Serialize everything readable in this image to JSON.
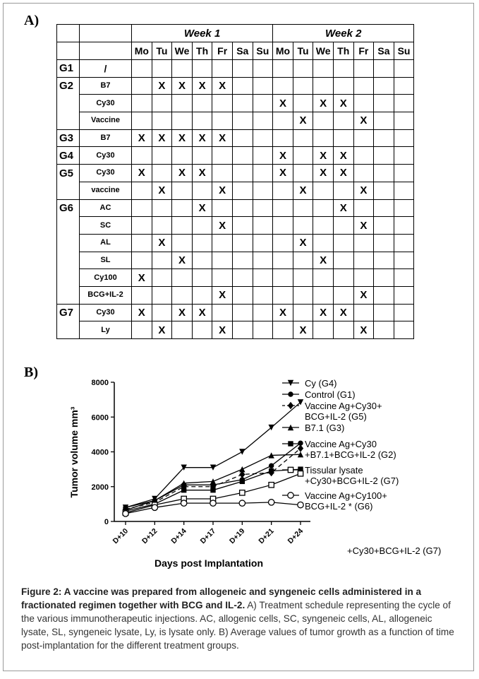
{
  "panel_a_label": "A)",
  "panel_b_label": "B)",
  "table": {
    "weeks": [
      "Week 1",
      "Week 2"
    ],
    "days": [
      "Mo",
      "Tu",
      "We",
      "Th",
      "Fr",
      "Sa",
      "Su",
      "Mo",
      "Tu",
      "We",
      "Th",
      "Fr",
      "Sa",
      "Su"
    ],
    "mark": "X",
    "rows": [
      {
        "group": "G1",
        "treatment": "/",
        "marks": [],
        "group_start": true
      },
      {
        "group": "G2",
        "treatment": "B7",
        "marks": [
          1,
          2,
          3,
          4
        ],
        "group_start": true
      },
      {
        "group": "",
        "treatment": "Cy30",
        "marks": [
          7,
          9,
          10
        ]
      },
      {
        "group": "",
        "treatment": "Vaccine",
        "marks": [
          8,
          11
        ]
      },
      {
        "group": "G3",
        "treatment": "B7",
        "marks": [
          0,
          1,
          2,
          3,
          4
        ],
        "group_start": true
      },
      {
        "group": "G4",
        "treatment": "Cy30",
        "marks": [
          7,
          9,
          10
        ],
        "group_start": true
      },
      {
        "group": "G5",
        "treatment": "Cy30",
        "marks": [
          0,
          2,
          3,
          7,
          9,
          10
        ],
        "group_start": true
      },
      {
        "group": "",
        "treatment": "vaccine",
        "marks": [
          1,
          4,
          8,
          11
        ]
      },
      {
        "group": "G6",
        "treatment": "AC",
        "marks": [
          3,
          10
        ],
        "group_start": true
      },
      {
        "group": "",
        "treatment": "SC",
        "marks": [
          4,
          11
        ]
      },
      {
        "group": "",
        "treatment": "AL",
        "marks": [
          1,
          8
        ]
      },
      {
        "group": "",
        "treatment": "SL",
        "marks": [
          2,
          9
        ]
      },
      {
        "group": "",
        "treatment": "Cy100",
        "marks": [
          0
        ]
      },
      {
        "group": "",
        "treatment": "BCG+IL-2",
        "marks": [
          4,
          11
        ]
      },
      {
        "group": "G7",
        "treatment": "Cy30",
        "marks": [
          0,
          2,
          3,
          7,
          9,
          10
        ],
        "group_start": true
      },
      {
        "group": "",
        "treatment": "Ly",
        "marks": [
          1,
          4,
          8,
          11
        ]
      }
    ]
  },
  "chart_data": {
    "type": "line",
    "xlabel": "Days post Implantation",
    "ylabel": "Tumor volume mm³",
    "categories": [
      "D+10",
      "D+12",
      "D+14",
      "D+17",
      "D+19",
      "D+21",
      "D+24"
    ],
    "ylim": [
      0,
      8000
    ],
    "yticks": [
      0,
      2000,
      4000,
      6000,
      8000
    ],
    "series": [
      {
        "name": "Cy (G4)",
        "marker": "triangle-down",
        "dashed": false,
        "values": [
          800,
          1300,
          3100,
          3100,
          4000,
          5400,
          6850
        ]
      },
      {
        "name": "Control (G1)",
        "marker": "circle",
        "dashed": false,
        "values": [
          800,
          1200,
          2100,
          2100,
          2400,
          3200,
          4500
        ]
      },
      {
        "name": "Vaccine Ag+Cy30+ BCG+IL-2 (G5)",
        "marker": "diamond",
        "dashed": true,
        "values": [
          700,
          1100,
          2000,
          2000,
          2700,
          2800,
          4200
        ]
      },
      {
        "name": "B7.1 (G3)",
        "marker": "triangle",
        "dashed": false,
        "values": [
          650,
          1200,
          2200,
          2300,
          3000,
          3800,
          3850
        ]
      },
      {
        "name": "Vaccine Ag+Cy30 +B7.1+BCG+IL-2 (G2)",
        "marker": "square",
        "dashed": false,
        "values": [
          600,
          1000,
          1800,
          1800,
          2300,
          2900,
          3000
        ]
      },
      {
        "name": "Tissular lysate +Cy30+BCG+IL-2 (G7)",
        "marker": "open-square",
        "dashed": false,
        "values": [
          500,
          950,
          1300,
          1300,
          1650,
          2100,
          2750
        ]
      },
      {
        "name": "Vaccine Ag+Cy100+ BCG+IL-2 * (G6)",
        "marker": "open-circle",
        "dashed": false,
        "values": [
          450,
          800,
          1050,
          1050,
          1050,
          1100,
          950
        ]
      }
    ],
    "legend_lines": [
      [
        "Cy (G4)"
      ],
      [
        "Control (G1)"
      ],
      [
        "Vaccine Ag+Cy30+",
        "BCG+IL-2 (G5)"
      ],
      [
        "B7.1 (G3)"
      ],
      [
        "Vaccine Ag+Cy30",
        "+B7.1+BCG+IL-2 (G2)"
      ],
      [
        "Tissular lysate",
        "+Cy30+BCG+IL-2 (G7)"
      ],
      [
        "Vaccine Ag+Cy100+",
        "BCG+IL-2 * (G6)"
      ]
    ],
    "stray_label": "+Cy30+BCG+IL-2 (G7)"
  },
  "caption": {
    "title": "Figure 2: A vaccine was prepared from allogeneic and syngeneic cells administered in a fractionated regimen together with BCG and IL-2.",
    "body": " A) Treatment schedule representing the cycle of the various immunotherapeutic injections. AC, allogenic cells, SC, syngeneic cells, AL, allogeneic lysate, SL, syngeneic lysate, Ly, is lysate only. B) Average values of tumor growth as a function of time post-implantation for the different treatment groups."
  }
}
